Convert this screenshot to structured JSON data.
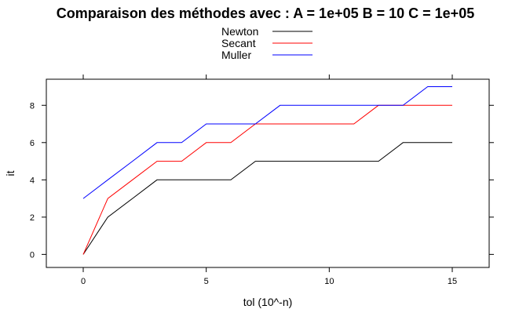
{
  "chart_data": {
    "type": "line",
    "title": "Comparaison des méthodes avec : A =  1e+05 B =  10 C =  1e+05",
    "xlabel": "tol (10^-n)",
    "ylabel": "it",
    "xlim": [
      -1.5,
      16.5
    ],
    "ylim": [
      -0.7,
      9.4
    ],
    "xticks": [
      0,
      5,
      10,
      15
    ],
    "yticks": [
      0,
      2,
      4,
      6,
      8
    ],
    "grid": false,
    "legend_position": "top-center",
    "x": [
      0,
      1,
      2,
      3,
      4,
      5,
      6,
      7,
      8,
      9,
      10,
      11,
      12,
      13,
      14,
      15
    ],
    "series": [
      {
        "name": "Newton",
        "color": "#000000",
        "values": [
          0,
          2,
          3,
          4,
          4,
          4,
          4,
          5,
          5,
          5,
          5,
          5,
          5,
          6,
          6,
          6
        ]
      },
      {
        "name": "Secant",
        "color": "#ff0000",
        "values": [
          0,
          3,
          4,
          5,
          5,
          6,
          6,
          7,
          7,
          7,
          7,
          7,
          8,
          8,
          8,
          8
        ]
      },
      {
        "name": "Muller",
        "color": "#0000ff",
        "values": [
          3,
          4,
          5,
          6,
          6,
          7,
          7,
          7,
          8,
          8,
          8,
          8,
          8,
          8,
          9,
          9
        ]
      }
    ]
  }
}
